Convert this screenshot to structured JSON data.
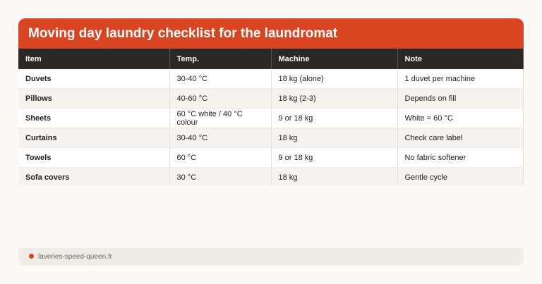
{
  "title": "Moving day laundry checklist for the laundromat",
  "columns": [
    "Item",
    "Temp.",
    "Machine",
    "Note"
  ],
  "rows": [
    [
      "Duvets",
      "30-40 °C",
      "18 kg (alone)",
      "1 duvet per machine"
    ],
    [
      "Pillows",
      "40-60 °C",
      "18 kg (2-3)",
      "Depends on fill"
    ],
    [
      "Sheets",
      "60 °C white / 40 °C colour",
      "9 or 18 kg",
      "White = 60 °C"
    ],
    [
      "Curtains",
      "30-40 °C",
      "18 kg",
      "Check care label"
    ],
    [
      "Towels",
      "60 °C",
      "9 or 18 kg",
      "No fabric softener"
    ],
    [
      "Sofa covers",
      "30 °C",
      "18 kg",
      "Gentle cycle"
    ]
  ],
  "footer": {
    "site": "laveries-speed-queen.fr"
  },
  "colors": {
    "accent": "#d94522",
    "header": "#2b2826"
  }
}
